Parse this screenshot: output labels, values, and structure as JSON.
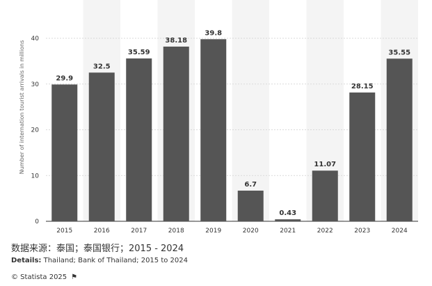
{
  "chart_data": {
    "type": "bar",
    "categories": [
      "2015",
      "2016",
      "2017",
      "2018",
      "2019",
      "2020",
      "2021",
      "2022",
      "2023",
      "2024"
    ],
    "values": [
      29.9,
      32.5,
      35.59,
      38.18,
      39.8,
      6.7,
      0.43,
      11.07,
      28.15,
      35.55
    ],
    "value_labels": [
      "29.9",
      "32.5",
      "35.59",
      "38.18",
      "39.8",
      "6.7",
      "0.43",
      "11.07",
      "28.15",
      "35.55"
    ],
    "title": "",
    "xlabel": "",
    "ylabel": "Number of internation tourist arrivals in millions",
    "ylim": [
      0,
      40
    ],
    "yticks": [
      0,
      10,
      20,
      30,
      40
    ],
    "grid": true,
    "bar_color": "#555555",
    "band_color": "#f4f4f4"
  },
  "source": {
    "text": "数据来源：泰国；泰国银行；2015 - 2024"
  },
  "details": {
    "label": "Details:",
    "text": "Thailand; Bank of Thailand; 2015 to 2024"
  },
  "copyright": {
    "text": "© Statista 2025",
    "icon": "flag-icon"
  }
}
